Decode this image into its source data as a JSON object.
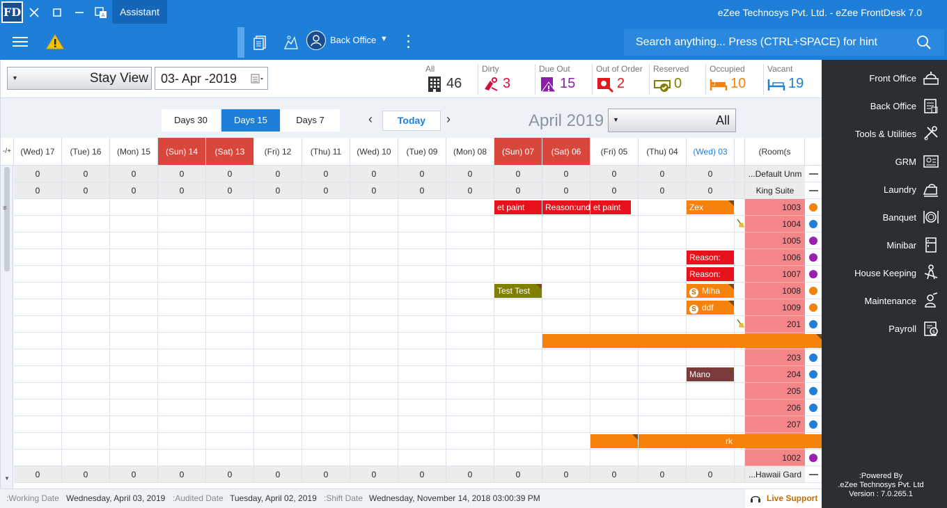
{
  "titlebar": {
    "logo": "FD",
    "assistant": "Assistant",
    "app_title": "eZee Technosys Pvt. Ltd. - eZee FrontDesk 7.0"
  },
  "toolbar": {
    "user_menu": "Back Office",
    "search_placeholder": "Search anything... Press (CTRL+SPACE) for hint"
  },
  "filters": {
    "view": "Stay View",
    "date": "03- Apr -2019"
  },
  "stats": [
    {
      "label": "All",
      "count": "46",
      "icon": "building-icon",
      "color": "#333333"
    },
    {
      "label": "Dirty",
      "count": "3",
      "icon": "dirty-room-icon",
      "color": "#d0103a"
    },
    {
      "label": "Due Out",
      "count": "15",
      "icon": "due-out-icon",
      "color": "#8a1fa8"
    },
    {
      "label": "Out of Order",
      "count": "2",
      "icon": "out-of-order-icon",
      "color": "#e0191e"
    },
    {
      "label": "Reserved",
      "count": "0",
      "icon": "reserved-icon",
      "color": "#808000"
    },
    {
      "label": "Occupied",
      "count": "10",
      "icon": "occupied-bed-icon",
      "color": "#f5820d"
    },
    {
      "label": "Vacant",
      "count": "19",
      "icon": "vacant-bed-icon",
      "color": "#1e7fd8"
    }
  ],
  "day_tabs": [
    {
      "label": "Days 30",
      "active": false
    },
    {
      "label": "Days 15",
      "active": true
    },
    {
      "label": "Days 7",
      "active": false
    }
  ],
  "today": "Today",
  "month": "April 2019",
  "room_filter": "All",
  "grid": {
    "corner": "-/+",
    "days": [
      {
        "label": "(Wed) 17",
        "type": "normal"
      },
      {
        "label": "(Tue) 16",
        "type": "normal"
      },
      {
        "label": "(Mon) 15",
        "type": "normal"
      },
      {
        "label": "(Sun) 14",
        "type": "weekend"
      },
      {
        "label": "(Sat) 13",
        "type": "weekend"
      },
      {
        "label": "(Fri) 12",
        "type": "normal"
      },
      {
        "label": "(Thu) 11",
        "type": "normal"
      },
      {
        "label": "(Wed) 10",
        "type": "normal"
      },
      {
        "label": "(Tue) 09",
        "type": "normal"
      },
      {
        "label": "(Mon) 08",
        "type": "normal"
      },
      {
        "label": "(Sun) 07",
        "type": "weekend"
      },
      {
        "label": "(Sat) 06",
        "type": "weekend"
      },
      {
        "label": "(Fri) 05",
        "type": "normal"
      },
      {
        "label": "(Thu) 04",
        "type": "normal"
      },
      {
        "label": "(Wed) 03",
        "type": "current"
      }
    ],
    "rooms_header": "(Room(s",
    "zero": "0",
    "rows": [
      {
        "kind": "category",
        "label": "...Default Unm"
      },
      {
        "kind": "category",
        "label": "King Suite"
      },
      {
        "kind": "room",
        "label": "1003",
        "dot": "#f5820d"
      },
      {
        "kind": "room",
        "label": "1004",
        "dot": "#1e7fd8",
        "broom": true
      },
      {
        "kind": "room",
        "label": "1005",
        "dot": "#9b1fb0"
      },
      {
        "kind": "room",
        "label": "1006",
        "dot": "#9b1fb0"
      },
      {
        "kind": "room",
        "label": "1007",
        "dot": "#9b1fb0"
      },
      {
        "kind": "room",
        "label": "1008",
        "dot": "#f5820d"
      },
      {
        "kind": "room",
        "label": "1009",
        "dot": "#f5820d"
      },
      {
        "kind": "room",
        "label": "201",
        "dot": "#1e7fd8",
        "broom": true
      },
      {
        "kind": "room",
        "label": "",
        "dot": ""
      },
      {
        "kind": "room",
        "label": "203",
        "dot": "#1e7fd8"
      },
      {
        "kind": "room",
        "label": "204",
        "dot": "#1e7fd8"
      },
      {
        "kind": "room",
        "label": "205",
        "dot": "#1e7fd8"
      },
      {
        "kind": "room",
        "label": "206",
        "dot": "#1e7fd8"
      },
      {
        "kind": "room",
        "label": "207",
        "dot": "#1e7fd8"
      },
      {
        "kind": "room",
        "label": "",
        "dot": ""
      },
      {
        "kind": "room",
        "label": "1002",
        "dot": "#9b1fb0"
      },
      {
        "kind": "category",
        "label": "...Hawaii Gard"
      }
    ],
    "bookings": [
      {
        "row": 2,
        "start": 10,
        "end": 11,
        "text": "et paint",
        "color": "#e8121c",
        "corner": false
      },
      {
        "row": 2,
        "start": 11,
        "end": 12,
        "text": "Reason:unde",
        "color": "#e8121c",
        "corner": false
      },
      {
        "row": 2,
        "start": 12,
        "end": 12.85,
        "text": "et paint",
        "color": "#e8121c",
        "corner": false
      },
      {
        "row": 2,
        "start": 14,
        "end": 15,
        "text": "Zex",
        "color": "#f5820d",
        "corner": true
      },
      {
        "row": 5,
        "start": 14,
        "end": 15,
        "text": "Reason:",
        "color": "#e8121c",
        "corner": false
      },
      {
        "row": 6,
        "start": 14,
        "end": 15,
        "text": "Reason:",
        "color": "#e8121c",
        "corner": false
      },
      {
        "row": 7,
        "start": 10,
        "end": 11,
        "text": "Test Test",
        "color": "#808000",
        "corner": true
      },
      {
        "row": 7,
        "start": 14,
        "end": 15,
        "text": "Miha",
        "color": "#f5820d",
        "corner": true,
        "icon": "S"
      },
      {
        "row": 8,
        "start": 14,
        "end": 15,
        "text": "ddf",
        "color": "#f5820d",
        "corner": true,
        "icon": "S"
      },
      {
        "row": 10,
        "start": 11,
        "end": 17.5,
        "text": "",
        "color": "#f5820d",
        "corner": true
      },
      {
        "row": 12,
        "start": 14,
        "end": 15,
        "text": "Mano",
        "color": "#7b3b3b",
        "corner": true
      },
      {
        "row": 16,
        "start": 12,
        "end": 13,
        "text": "",
        "color": "#f5820d",
        "corner": true
      },
      {
        "row": 16,
        "start": 13,
        "end": 17.5,
        "text": "rk",
        "color": "#f5820d",
        "corner": false
      }
    ]
  },
  "status": {
    "working_date_label": ":Working Date",
    "working_date": "Wednesday, April 03, 2019",
    "audited_date_label": ":Audited Date",
    "audited_date": "Tuesday, April 02, 2019",
    "shift_date_label": ":Shift Date",
    "shift_date": "Wednesday, November 14, 2018 03:00:39 PM",
    "live_support": "Live Support"
  },
  "sidebar": {
    "items": [
      {
        "label": "Front Office",
        "icon": "front-office-icon"
      },
      {
        "label": "Back Office",
        "icon": "back-office-icon"
      },
      {
        "label": "Tools & Utilities",
        "icon": "tools-icon"
      },
      {
        "label": "GRM",
        "icon": "grm-icon"
      },
      {
        "label": "Laundry",
        "icon": "laundry-icon"
      },
      {
        "label": "Banquet",
        "icon": "banquet-icon"
      },
      {
        "label": "Minibar",
        "icon": "minibar-icon"
      },
      {
        "label": "House Keeping",
        "icon": "housekeeping-icon"
      },
      {
        "label": "Maintenance",
        "icon": "maintenance-icon"
      },
      {
        "label": "Payroll",
        "icon": "payroll-icon"
      }
    ],
    "powered_line1": ":Powered By",
    "powered_line2": ".eZee Technosys Pvt. Ltd",
    "powered_line3": "Version : 7.0.265.1"
  }
}
